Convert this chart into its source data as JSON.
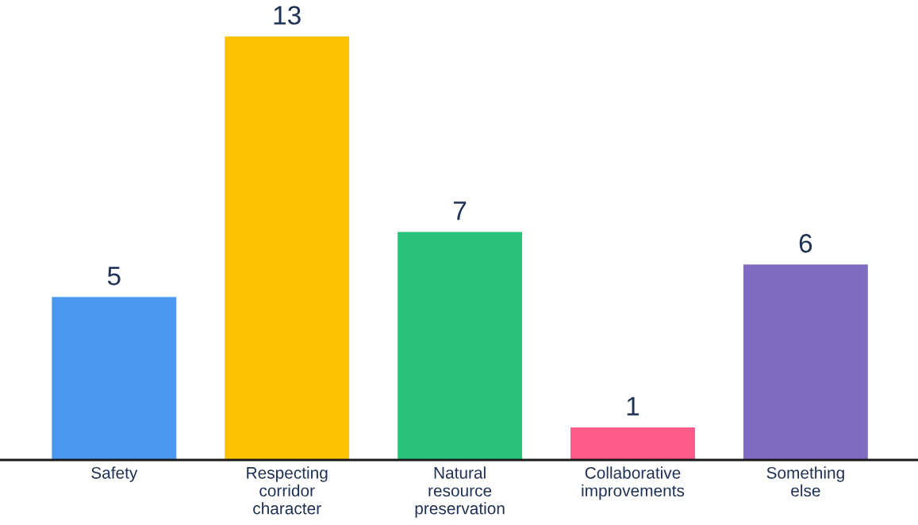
{
  "chart_data": {
    "type": "bar",
    "categories": [
      "Safety",
      "Respecting\ncorridor\ncharacter",
      "Natural\nresource\npreservation",
      "Collaborative\nimprovements",
      "Something\nelse"
    ],
    "values": [
      5,
      13,
      7,
      1,
      6
    ],
    "colors": [
      "#4a98f0",
      "#fdc300",
      "#2ac37a",
      "#fd5a8a",
      "#7f6bbf"
    ],
    "data_labels": true,
    "grid": false,
    "legend": false
  }
}
